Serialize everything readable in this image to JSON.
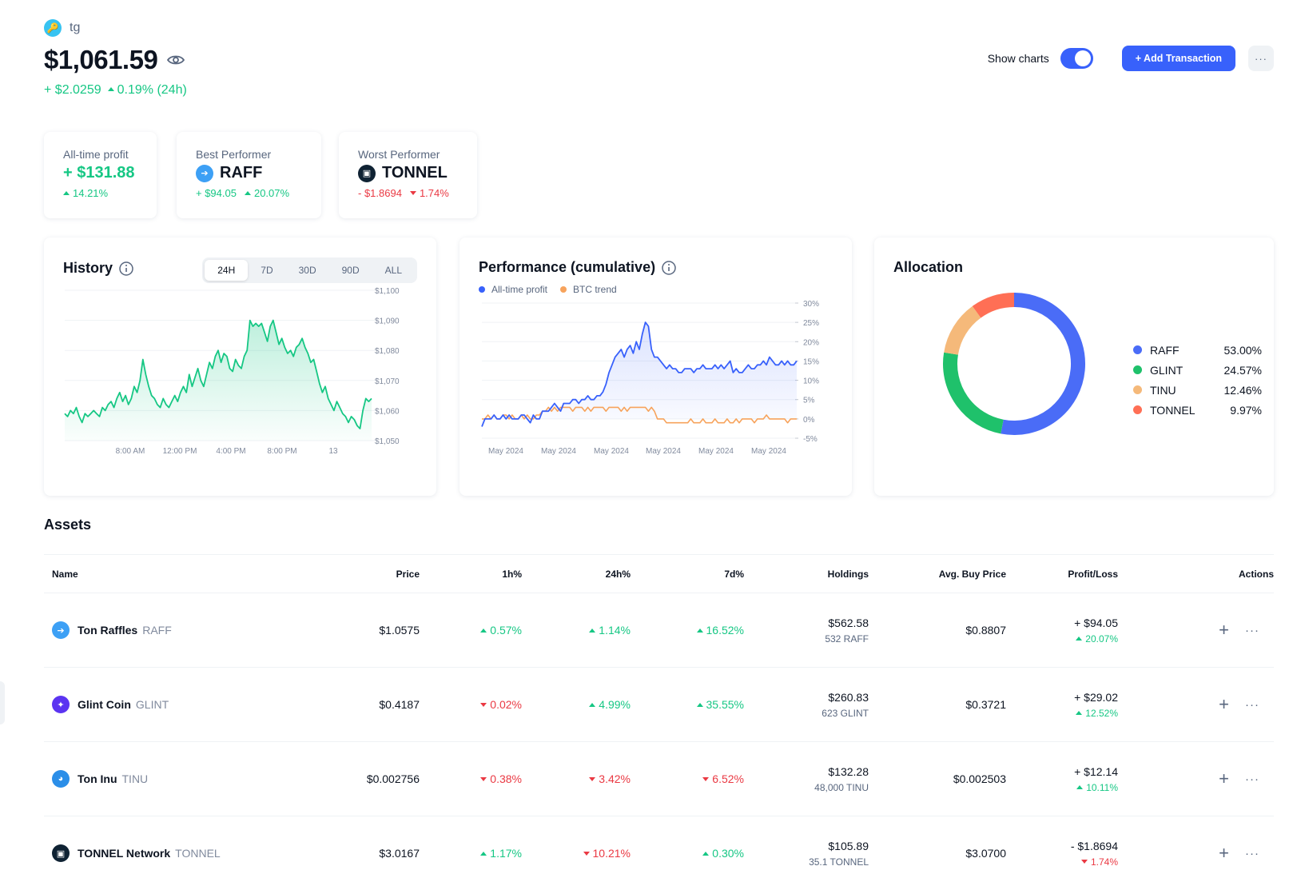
{
  "portfolio": {
    "name": "tg",
    "balance": "$1,061.59",
    "change_abs": "+ $2.0259",
    "change_pct": "0.19% (24h)"
  },
  "header": {
    "show_charts_label": "Show charts",
    "show_charts_on": true,
    "add_transaction_label": "+ Add Transaction",
    "more_label": "···"
  },
  "stats": {
    "all_time": {
      "label": "All-time profit",
      "value": "+ $131.88",
      "pct": "14.21%"
    },
    "best": {
      "label": "Best Performer",
      "symbol": "RAFF",
      "abs": "+ $94.05",
      "pct": "20.07%"
    },
    "worst": {
      "label": "Worst Performer",
      "symbol": "TONNEL",
      "abs": "- $1.8694",
      "pct": "1.74%"
    }
  },
  "history": {
    "title": "History",
    "tabs": [
      "24H",
      "7D",
      "30D",
      "90D",
      "ALL"
    ],
    "active_tab": "24H",
    "chart_data": {
      "type": "area",
      "x_tick_labels": [
        "8:00 AM",
        "12:00 PM",
        "4:00 PM",
        "8:00 PM",
        "13"
      ],
      "y_tick_labels": [
        "$1,100",
        "$1,090",
        "$1,080",
        "$1,070",
        "$1,060",
        "$1,050"
      ],
      "ylim": [
        1050,
        1100
      ],
      "color": "#16c784",
      "values": [
        1059,
        1058,
        1060,
        1059,
        1061,
        1058,
        1056,
        1059,
        1058,
        1059,
        1060,
        1059,
        1058,
        1061,
        1060,
        1062,
        1063,
        1061,
        1064,
        1066,
        1063,
        1065,
        1062,
        1064,
        1068,
        1066,
        1070,
        1077,
        1072,
        1068,
        1065,
        1064,
        1062,
        1061,
        1064,
        1062,
        1061,
        1063,
        1065,
        1063,
        1066,
        1068,
        1066,
        1072,
        1068,
        1071,
        1074,
        1070,
        1068,
        1072,
        1076,
        1074,
        1078,
        1080,
        1076,
        1079,
        1078,
        1074,
        1073,
        1077,
        1075,
        1074,
        1078,
        1080,
        1090,
        1088,
        1089,
        1088,
        1089,
        1086,
        1083,
        1088,
        1090,
        1086,
        1082,
        1084,
        1081,
        1079,
        1080,
        1078,
        1081,
        1082,
        1084,
        1081,
        1079,
        1076,
        1077,
        1073,
        1069,
        1066,
        1068,
        1064,
        1062,
        1060,
        1063,
        1061,
        1059,
        1058,
        1056,
        1058,
        1057,
        1055,
        1054,
        1060,
        1064,
        1063,
        1064
      ]
    }
  },
  "performance": {
    "title": "Performance (cumulative)",
    "legend": [
      {
        "name": "All-time profit",
        "color": "#3861fb"
      },
      {
        "name": "BTC trend",
        "color": "#f7a35c"
      }
    ],
    "chart_data": {
      "type": "line",
      "x_tick_labels": [
        "May 2024",
        "May 2024",
        "May 2024",
        "May 2024",
        "May 2024",
        "May 2024"
      ],
      "y_tick_labels": [
        "30%",
        "25%",
        "20%",
        "15%",
        "10%",
        "5%",
        "0%",
        "-5%"
      ],
      "ylim": [
        -5,
        30
      ],
      "series": [
        {
          "name": "All-time profit",
          "color": "#3861fb",
          "values": [
            -2,
            0,
            0,
            0,
            1,
            0,
            0,
            1,
            0,
            1,
            0,
            0,
            0,
            1,
            1,
            0,
            -1,
            1,
            0,
            0,
            2,
            2,
            2,
            3,
            4,
            3,
            2,
            4,
            4,
            4,
            5,
            5,
            4,
            5,
            5,
            6,
            5,
            5,
            6,
            6,
            7,
            9,
            12,
            14,
            16,
            17,
            18,
            16,
            18,
            19,
            17,
            20,
            18,
            22,
            25,
            24,
            18,
            16,
            16,
            15,
            14,
            13,
            14,
            13,
            13,
            12,
            12,
            13,
            13,
            13,
            12,
            13,
            13,
            14,
            13,
            13,
            13,
            14,
            13,
            14,
            13,
            14,
            15,
            12,
            13,
            12,
            12,
            13,
            14,
            13,
            13,
            14,
            14,
            15,
            14,
            16,
            15,
            14,
            14,
            15,
            14,
            15,
            14,
            14,
            15
          ]
        },
        {
          "name": "BTC trend",
          "color": "#f7a35c",
          "values": [
            0,
            0,
            1,
            0,
            1,
            0,
            0,
            1,
            1,
            0,
            1,
            0,
            0,
            1,
            0,
            1,
            0,
            0,
            1,
            1,
            2,
            2,
            3,
            2,
            3,
            2,
            3,
            3,
            3,
            3,
            2,
            3,
            3,
            3,
            2,
            3,
            2,
            3,
            3,
            3,
            3,
            2,
            3,
            3,
            3,
            3,
            2,
            3,
            2,
            3,
            3,
            3,
            3,
            3,
            3,
            2,
            3,
            2,
            0,
            0,
            0,
            -1,
            -1,
            -1,
            -1,
            -1,
            -1,
            -1,
            -1,
            0,
            -1,
            -1,
            -1,
            0,
            -1,
            -1,
            -1,
            0,
            -1,
            -1,
            -1,
            0,
            -1,
            -1,
            0,
            -1,
            0,
            0,
            0,
            0,
            -1,
            0,
            0,
            0,
            1,
            0,
            0,
            0,
            0,
            0,
            0,
            -1,
            0,
            0,
            0
          ]
        }
      ]
    }
  },
  "allocation": {
    "title": "Allocation",
    "chart_data": {
      "type": "pie",
      "labels": [
        "RAFF",
        "GLINT",
        "TINU",
        "TONNEL"
      ],
      "values": [
        53.0,
        24.57,
        12.46,
        9.97
      ],
      "pct_labels": [
        "53.00%",
        "24.57%",
        "12.46%",
        "9.97%"
      ],
      "colors": [
        "#4a6cf7",
        "#1fc16b",
        "#f5b97a",
        "#ff6f55"
      ]
    }
  },
  "assets": {
    "title": "Assets",
    "columns": [
      "Name",
      "Price",
      "1h%",
      "24h%",
      "7d%",
      "Holdings",
      "Avg. Buy Price",
      "Profit/Loss",
      "Actions"
    ],
    "rows": [
      {
        "name": "Ton Raffles",
        "symbol": "RAFF",
        "icon": "raff-icon",
        "icon_color": "#3da0f5",
        "price": "$1.0575",
        "h1": "0.57%",
        "h1_dir": "up",
        "h24": "1.14%",
        "h24_dir": "up",
        "d7": "16.52%",
        "d7_dir": "up",
        "holdings": "$562.58",
        "holdings_qty": "532 RAFF",
        "avg_buy": "$0.8807",
        "pl": "+ $94.05",
        "pl_pct": "20.07%",
        "pl_dir": "up"
      },
      {
        "name": "Glint Coin",
        "symbol": "GLINT",
        "icon": "glint-icon",
        "icon_color": "#5b34f1",
        "price": "$0.4187",
        "h1": "0.02%",
        "h1_dir": "down",
        "h24": "4.99%",
        "h24_dir": "up",
        "d7": "35.55%",
        "d7_dir": "up",
        "holdings": "$260.83",
        "holdings_qty": "623 GLINT",
        "avg_buy": "$0.3721",
        "pl": "+ $29.02",
        "pl_pct": "12.52%",
        "pl_dir": "up"
      },
      {
        "name": "Ton Inu",
        "symbol": "TINU",
        "icon": "tinu-icon",
        "icon_color": "#2b8ee8",
        "price": "$0.002756",
        "h1": "0.38%",
        "h1_dir": "down",
        "h24": "3.42%",
        "h24_dir": "down",
        "d7": "6.52%",
        "d7_dir": "down",
        "holdings": "$132.28",
        "holdings_qty": "48,000 TINU",
        "avg_buy": "$0.002503",
        "pl": "+ $12.14",
        "pl_pct": "10.11%",
        "pl_dir": "up"
      },
      {
        "name": "TONNEL Network",
        "symbol": "TONNEL",
        "icon": "tonnel-icon",
        "icon_color": "#0f2233",
        "price": "$3.0167",
        "h1": "1.17%",
        "h1_dir": "up",
        "h24": "10.21%",
        "h24_dir": "down",
        "d7": "0.30%",
        "d7_dir": "up",
        "holdings": "$105.89",
        "holdings_qty": "35.1 TONNEL",
        "avg_buy": "$3.0700",
        "pl": "- $1.8694",
        "pl_pct": "1.74%",
        "pl_dir": "down"
      }
    ]
  }
}
